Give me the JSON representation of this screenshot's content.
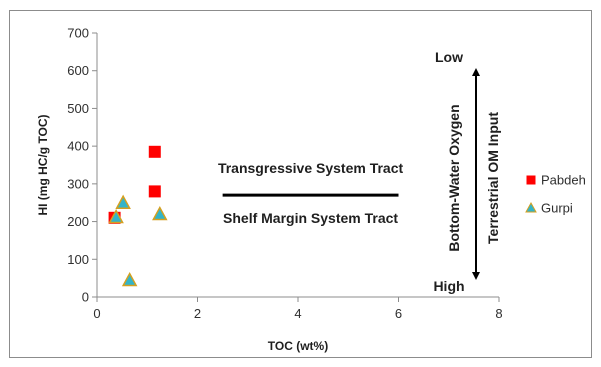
{
  "chart_data": {
    "type": "scatter",
    "xlabel": "TOC (wt%)",
    "ylabel": "HI (mg HC/g TOC)",
    "xlim": [
      0,
      8
    ],
    "ylim": [
      0,
      700
    ],
    "x_ticks": [
      "0",
      "2",
      "4",
      "6",
      "8"
    ],
    "y_ticks": [
      "0",
      "100",
      "200",
      "300",
      "400",
      "500",
      "600",
      "700"
    ],
    "grid": false,
    "legend_position": "right",
    "series": [
      {
        "name": "Pabdeh",
        "marker": "square",
        "color": "#ff0000",
        "points": [
          {
            "x": 0.35,
            "y": 210
          },
          {
            "x": 1.15,
            "y": 385
          },
          {
            "x": 1.15,
            "y": 280
          }
        ]
      },
      {
        "name": "Gurpi",
        "marker": "triangle",
        "color": "#33b4c8",
        "stroke": "#d4a020",
        "points": [
          {
            "x": 0.38,
            "y": 212
          },
          {
            "x": 0.52,
            "y": 250
          },
          {
            "x": 0.65,
            "y": 45
          },
          {
            "x": 1.25,
            "y": 220
          }
        ]
      }
    ],
    "annotations": {
      "upper": "Transgressive System Tract",
      "lower": "Shelf Margin System Tract",
      "boundary_y": 270,
      "boundary_x": [
        2.5,
        6.0
      ],
      "vertical_1": "Bottom-Water Oxygen",
      "vertical_2": "Terrestrial OM Input",
      "low_label": "Low",
      "high_label": "High"
    }
  }
}
